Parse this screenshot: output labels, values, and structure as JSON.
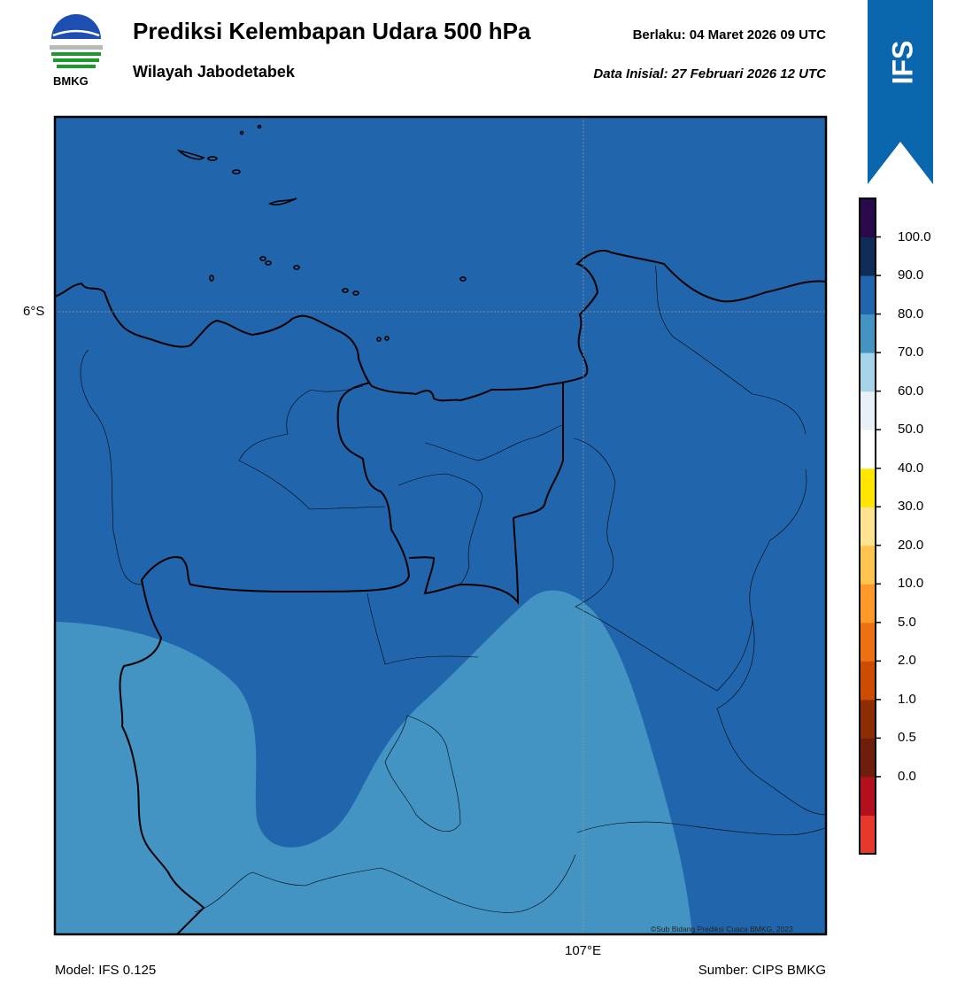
{
  "header": {
    "title": "Prediksi Kelembapan Udara 500 hPa",
    "subtitle": "Wilayah Jabodetabek",
    "valid_label": "Berlaku:  04 Maret 2026 09 UTC",
    "init_label": "Data Inisial:  27 Februari 2026 12 UTC",
    "logo_text": "BMKG"
  },
  "badge": {
    "text": "IFS",
    "color": "#0a66ad"
  },
  "map": {
    "lat_label": "6°S",
    "lon_label": "107°E",
    "copyright": "©Sub Bidang Prediksi Cuaca BMKG, 2023",
    "colors": {
      "zone_80_90": "#2166ac",
      "zone_70_80": "#4393c3"
    }
  },
  "colorbar": {
    "ticks": [
      "100.0",
      "90.0",
      "80.0",
      "70.0",
      "60.0",
      "50.0",
      "40.0",
      "30.0",
      "20.0",
      "10.0",
      "5.0",
      "2.0",
      "1.0",
      "0.5",
      "0.0"
    ],
    "colors": [
      "#e6382b",
      "#b2101f",
      "#6f1d0d",
      "#8c2d04",
      "#cc4c02",
      "#ec7014",
      "#fe9929",
      "#fec44f",
      "#fee391",
      "#ffe600",
      "#ffffff",
      "#e8f1f8",
      "#a6d3e8",
      "#4393c3",
      "#2166ac",
      "#0d2c57",
      "#2a0a4a"
    ]
  },
  "footer": {
    "model": "Model: IFS 0.125",
    "source": "Sumber: CIPS BMKG"
  }
}
